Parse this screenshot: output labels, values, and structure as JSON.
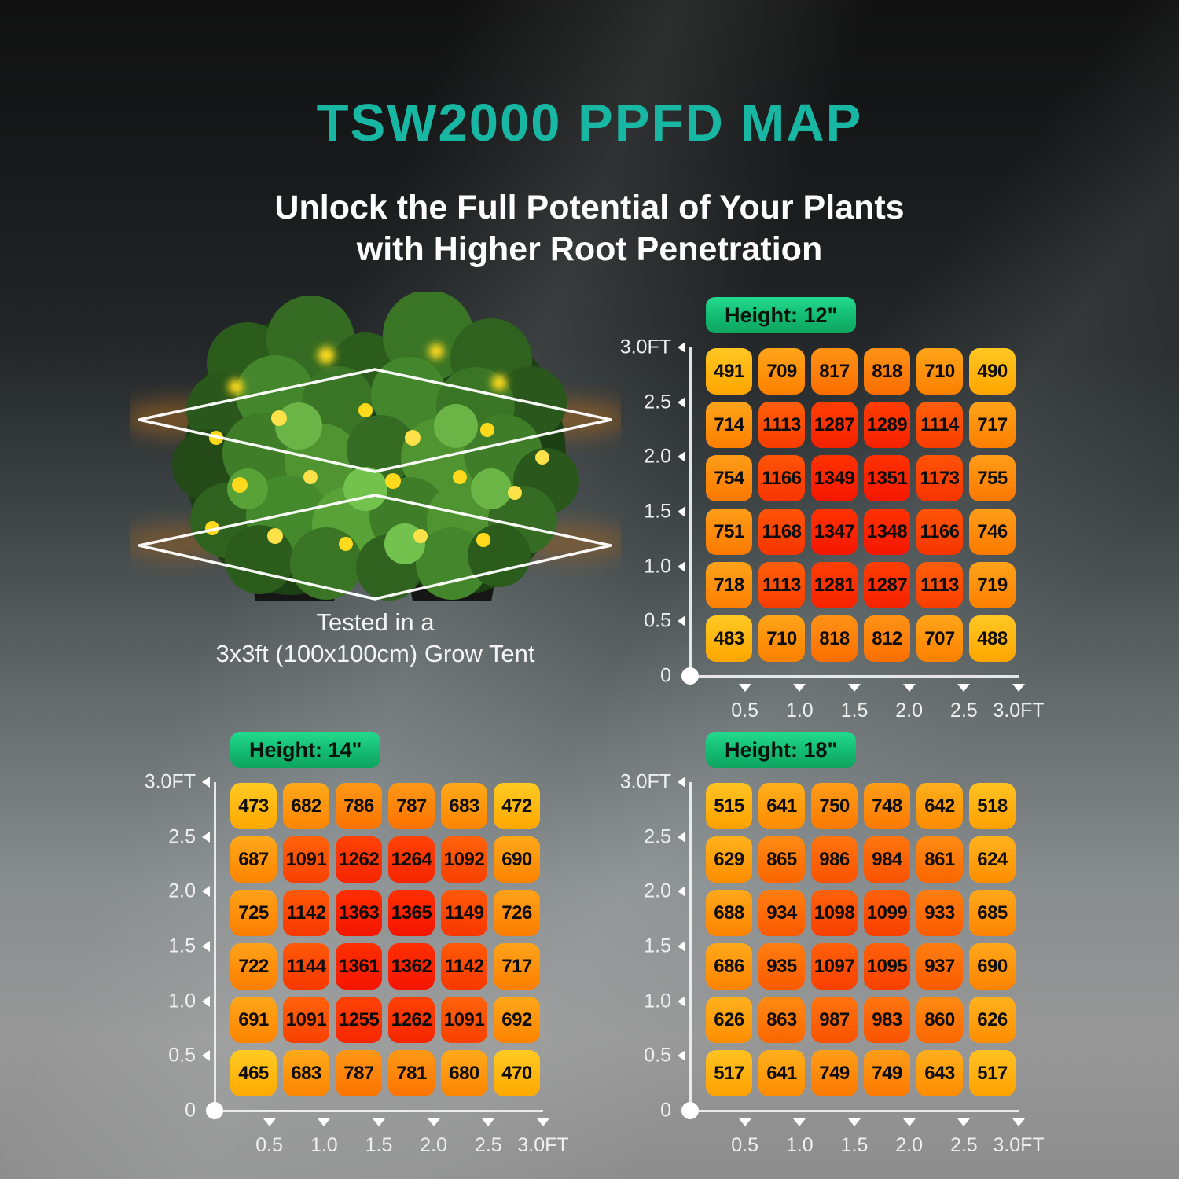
{
  "page": {
    "title": "TSW2000 PPFD MAP",
    "subtitle_line1": "Unlock the Full Potential of Your Plants",
    "subtitle_line2": "with Higher Root Penetration",
    "caption_line1": "Tested in a",
    "caption_line2": "3x3ft (100x100cm) Grow Tent"
  },
  "colors": {
    "title_teal": "#18B7A4",
    "badge_green": "#13BA72",
    "cell_low_yellow": "#FFC21E",
    "cell_high_red": "#FF2E00",
    "axis_white": "#F2F2F2"
  },
  "chart_data": [
    {
      "type": "heatmap",
      "title": "Height: 12\"",
      "x_ticks": [
        "0.5",
        "1.0",
        "1.5",
        "2.0",
        "2.5",
        "3.0FT"
      ],
      "y_ticks": [
        "3.0FT",
        "2.5",
        "2.0",
        "1.5",
        "1.0",
        "0.5",
        "0"
      ],
      "axis_range_ft": [
        0,
        3.0
      ],
      "value_range": [
        460,
        1365
      ],
      "values": [
        [
          491,
          709,
          817,
          818,
          710,
          490
        ],
        [
          714,
          1113,
          1287,
          1289,
          1114,
          717
        ],
        [
          754,
          1166,
          1349,
          1351,
          1173,
          755
        ],
        [
          751,
          1168,
          1347,
          1348,
          1166,
          746
        ],
        [
          718,
          1113,
          1281,
          1287,
          1113,
          719
        ],
        [
          483,
          710,
          818,
          812,
          707,
          488
        ]
      ]
    },
    {
      "type": "heatmap",
      "title": "Height: 14\"",
      "x_ticks": [
        "0.5",
        "1.0",
        "1.5",
        "2.0",
        "2.5",
        "3.0FT"
      ],
      "y_ticks": [
        "3.0FT",
        "2.5",
        "2.0",
        "1.5",
        "1.0",
        "0.5",
        "0"
      ],
      "axis_range_ft": [
        0,
        3.0
      ],
      "value_range": [
        460,
        1365
      ],
      "values": [
        [
          473,
          682,
          786,
          787,
          683,
          472
        ],
        [
          687,
          1091,
          1262,
          1264,
          1092,
          690
        ],
        [
          725,
          1142,
          1363,
          1365,
          1149,
          726
        ],
        [
          722,
          1144,
          1361,
          1362,
          1142,
          717
        ],
        [
          691,
          1091,
          1255,
          1262,
          1091,
          692
        ],
        [
          465,
          683,
          787,
          781,
          680,
          470
        ]
      ]
    },
    {
      "type": "heatmap",
      "title": "Height: 18\"",
      "x_ticks": [
        "0.5",
        "1.0",
        "1.5",
        "2.0",
        "2.5",
        "3.0FT"
      ],
      "y_ticks": [
        "3.0FT",
        "2.5",
        "2.0",
        "1.5",
        "1.0",
        "0.5",
        "0"
      ],
      "axis_range_ft": [
        0,
        3.0
      ],
      "value_range": [
        460,
        1365
      ],
      "values": [
        [
          515,
          641,
          750,
          748,
          642,
          518
        ],
        [
          629,
          865,
          986,
          984,
          861,
          624
        ],
        [
          688,
          934,
          1098,
          1099,
          933,
          685
        ],
        [
          686,
          935,
          1097,
          1095,
          937,
          690
        ],
        [
          626,
          863,
          987,
          983,
          860,
          626
        ],
        [
          517,
          641,
          749,
          749,
          643,
          517
        ]
      ]
    }
  ]
}
